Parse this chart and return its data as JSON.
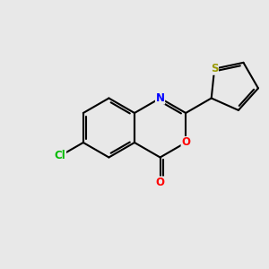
{
  "bg_color": "#e8e8e8",
  "bond_color": "#000000",
  "atom_colors": {
    "N": "#0000ff",
    "O_ring": "#ff0000",
    "O_carbonyl": "#ff0000",
    "S": "#999900",
    "Cl": "#00bb00"
  },
  "bond_width": 1.5,
  "figsize": [
    3.0,
    3.0
  ],
  "dpi": 100
}
